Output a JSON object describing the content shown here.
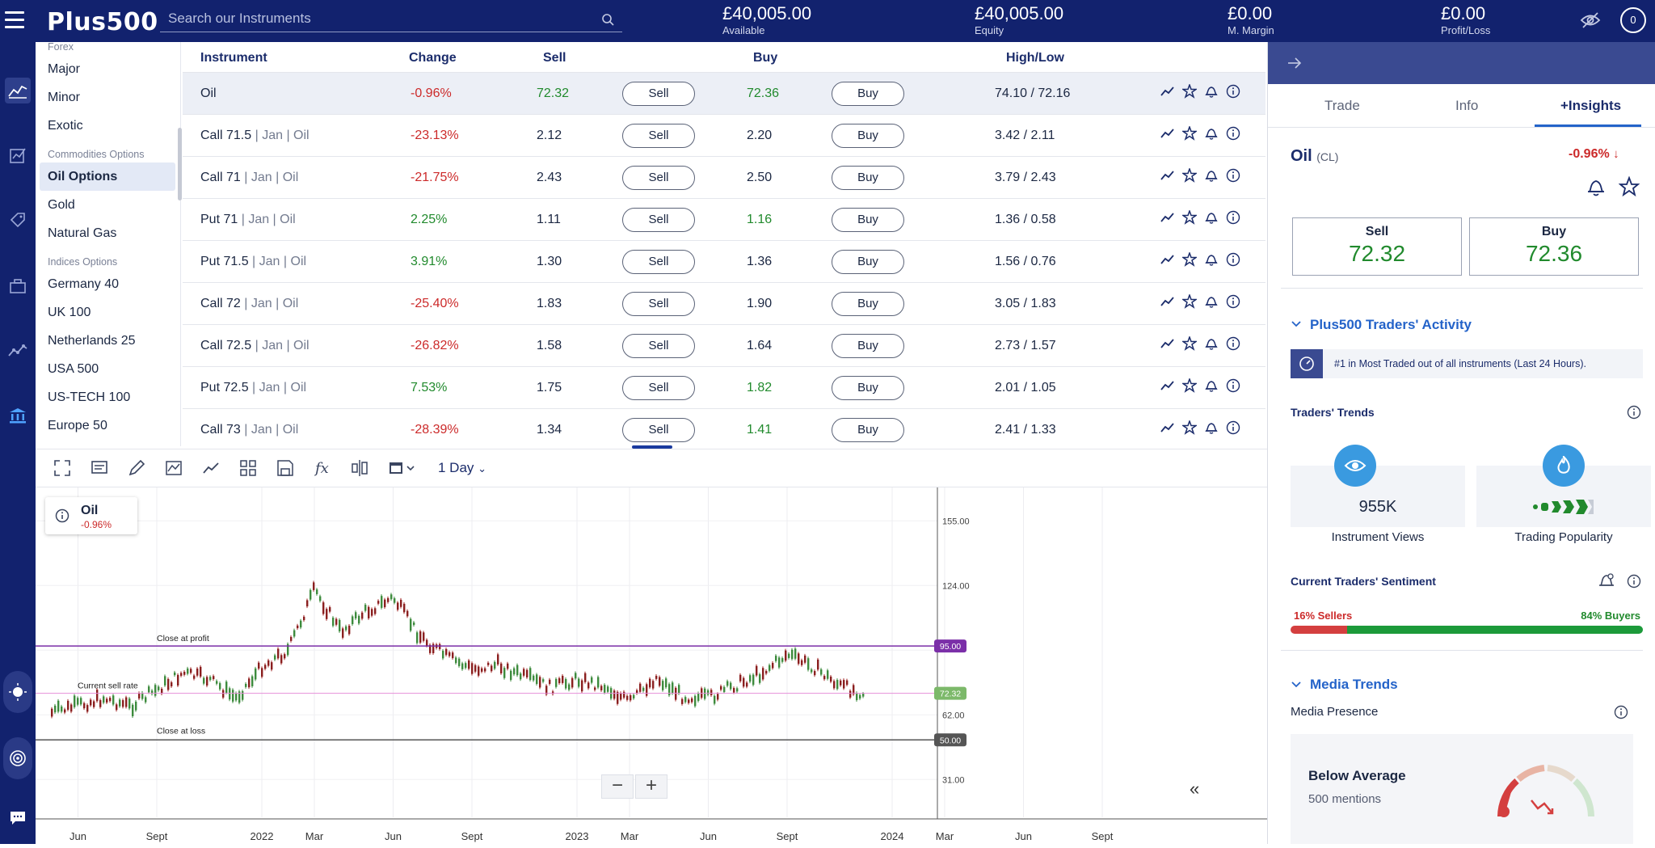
{
  "app": {
    "logo": "Plus500"
  },
  "search": {
    "placeholder": "Search our Instruments"
  },
  "stats": [
    {
      "value": "£40,005.00",
      "label": "Available"
    },
    {
      "value": "£40,005.00",
      "label": "Equity"
    },
    {
      "value": "£0.00",
      "label": "M. Margin"
    },
    {
      "value": "£0.00",
      "label": "Profit/Loss"
    }
  ],
  "account": {
    "badge": "0"
  },
  "nav": {
    "forex_head": "Forex",
    "forex": [
      "Major",
      "Minor",
      "Exotic"
    ],
    "commodities_head": "Commodities Options",
    "commodities": [
      "Oil Options",
      "Gold",
      "Natural Gas"
    ],
    "indices_head": "Indices Options",
    "indices": [
      "Germany 40",
      "UK 100",
      "Netherlands 25",
      "USA 500",
      "US-TECH 100",
      "Europe 50"
    ]
  },
  "table": {
    "headers": {
      "instrument": "Instrument",
      "change": "Change",
      "sell": "Sell",
      "buy": "Buy",
      "highlow": "High/Low"
    },
    "sell_label": "Sell",
    "buy_label": "Buy",
    "rows": [
      {
        "name": "Oil",
        "sub": "",
        "change": "-0.96%",
        "dir": "neg",
        "sell": "72.32",
        "buy": "72.36",
        "buy_dir": "pos",
        "sell_dir": "pos",
        "highlow": "74.10 / 72.16"
      },
      {
        "name": "Call 71.5",
        "sub": " | Jan | Oil",
        "change": "-23.13%",
        "dir": "neg",
        "sell": "2.12",
        "buy": "2.20",
        "buy_dir": "",
        "sell_dir": "",
        "highlow": "3.42 / 2.11"
      },
      {
        "name": "Call 71",
        "sub": " | Jan | Oil",
        "change": "-21.75%",
        "dir": "neg",
        "sell": "2.43",
        "buy": "2.50",
        "buy_dir": "",
        "sell_dir": "",
        "highlow": "3.79 / 2.43"
      },
      {
        "name": "Put 71",
        "sub": " | Jan | Oil",
        "change": "2.25%",
        "dir": "pos",
        "sell": "1.11",
        "buy": "1.16",
        "buy_dir": "pos",
        "sell_dir": "",
        "highlow": "1.36 / 0.58"
      },
      {
        "name": "Put 71.5",
        "sub": " | Jan | Oil",
        "change": "3.91%",
        "dir": "pos",
        "sell": "1.30",
        "buy": "1.36",
        "buy_dir": "",
        "sell_dir": "",
        "highlow": "1.56 / 0.76"
      },
      {
        "name": "Call 72",
        "sub": " | Jan | Oil",
        "change": "-25.40%",
        "dir": "neg",
        "sell": "1.83",
        "buy": "1.90",
        "buy_dir": "",
        "sell_dir": "",
        "highlow": "3.05 / 1.83"
      },
      {
        "name": "Call 72.5",
        "sub": " | Jan | Oil",
        "change": "-26.82%",
        "dir": "neg",
        "sell": "1.58",
        "buy": "1.64",
        "buy_dir": "",
        "sell_dir": "",
        "highlow": "2.73 / 1.57"
      },
      {
        "name": "Put 72.5",
        "sub": " | Jan | Oil",
        "change": "7.53%",
        "dir": "pos",
        "sell": "1.75",
        "buy": "1.82",
        "buy_dir": "pos",
        "sell_dir": "",
        "highlow": "2.01 / 1.05"
      },
      {
        "name": "Call 73",
        "sub": " | Jan | Oil",
        "change": "-28.39%",
        "dir": "neg",
        "sell": "1.34",
        "buy": "1.41",
        "buy_dir": "pos",
        "sell_dir": "",
        "highlow": "2.41 / 1.33"
      }
    ]
  },
  "chart_toolbar": {
    "period": "1 Day"
  },
  "chart_data": {
    "type": "line",
    "instrument": "Oil",
    "change": "-0.96%",
    "y_ticks": [
      "155.00",
      "124.00",
      "62.00",
      "31.00"
    ],
    "x_ticks": [
      "Jun",
      "Sept",
      "2022",
      "Mar",
      "Jun",
      "Sept",
      "2023",
      "Mar",
      "Jun",
      "Sept",
      "2024",
      "Mar",
      "Jun",
      "Sept"
    ],
    "lines": [
      {
        "label": "Close at profit",
        "value": "95.00",
        "color": "#7b2fa8"
      },
      {
        "label": "Current sell rate",
        "value": "72.32",
        "color": "#e58fd8"
      },
      {
        "label": "Close at loss",
        "value": "50.00",
        "color": "#555555"
      }
    ],
    "ylim": [
      16,
      171
    ],
    "price_path": [
      [
        "2021-05",
        63
      ],
      [
        "2021-07",
        70
      ],
      [
        "2021-08",
        66
      ],
      [
        "2021-10",
        82
      ],
      [
        "2021-11",
        79
      ],
      [
        "2021-12",
        70
      ],
      [
        "2022-01",
        85
      ],
      [
        "2022-02",
        93
      ],
      [
        "2022-03",
        122
      ],
      [
        "2022-04",
        102
      ],
      [
        "2022-05",
        112
      ],
      [
        "2022-06",
        118
      ],
      [
        "2022-07",
        100
      ],
      [
        "2022-08",
        90
      ],
      [
        "2022-09",
        84
      ],
      [
        "2022-10",
        86
      ],
      [
        "2022-11",
        80
      ],
      [
        "2022-12",
        75
      ],
      [
        "2023-01",
        79
      ],
      [
        "2023-02",
        76
      ],
      [
        "2023-03",
        68
      ],
      [
        "2023-04",
        80
      ],
      [
        "2023-05",
        71
      ],
      [
        "2023-06",
        70
      ],
      [
        "2023-07",
        76
      ],
      [
        "2023-08",
        82
      ],
      [
        "2023-09",
        91
      ],
      [
        "2023-10",
        85
      ],
      [
        "2023-11",
        76
      ],
      [
        "2023-12",
        72
      ]
    ]
  },
  "panel": {
    "tabs": [
      "Trade",
      "Info",
      "+Insights"
    ],
    "instrument": "Oil",
    "code": "(CL)",
    "change": "-0.96%",
    "sell_label": "Sell",
    "sell": "72.32",
    "buy_label": "Buy",
    "buy": "72.36",
    "activity_title": "Plus500 Traders' Activity",
    "activity_text": "#1 in Most Traded out of all instruments (Last 24 Hours).",
    "trends_title": "Traders' Trends",
    "views": "955K",
    "views_label": "Instrument Views",
    "popularity_label": "Trading Popularity",
    "sentiment_title": "Current Traders' Sentiment",
    "sellers": "16% Sellers",
    "buyers": "84% Buyers",
    "sellers_pct": 16,
    "media_title": "Media Trends",
    "media_presence": "Media Presence",
    "media_level": "Below Average",
    "mentions": "500 mentions"
  }
}
